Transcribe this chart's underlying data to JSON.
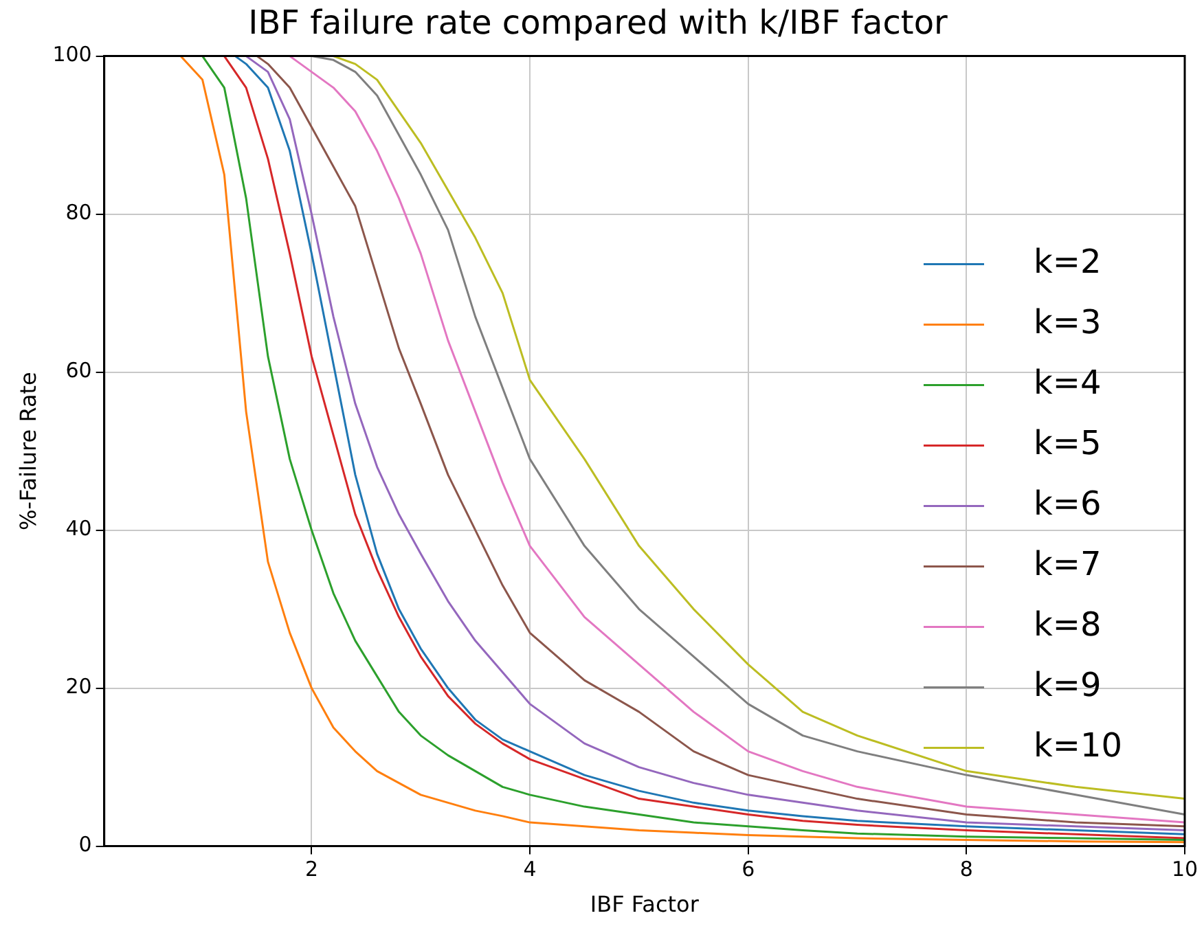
{
  "chart_data": {
    "type": "line",
    "title": "IBF failure rate compared with k/IBF factor",
    "xlabel": "IBF Factor",
    "ylabel": "%-Failure Rate",
    "series": [
      {
        "name": "k=2",
        "color": "#1f77b4",
        "x": [
          1.3,
          1.4,
          1.6,
          1.8,
          2.0,
          2.2,
          2.4,
          2.6,
          2.8,
          3.0,
          3.25,
          3.5,
          3.75,
          4.0,
          4.5,
          5.0,
          5.5,
          6.0,
          6.5,
          7.0,
          8.0,
          9.0,
          10.0
        ],
        "values": [
          100,
          99,
          96,
          88,
          75,
          61,
          47,
          37,
          30,
          25,
          20,
          16,
          13.5,
          12,
          9,
          7,
          5.5,
          4.5,
          3.8,
          3.2,
          2.5,
          2,
          1.5
        ]
      },
      {
        "name": "k=3",
        "color": "#ff7f0e",
        "x": [
          0.8,
          1.0,
          1.2,
          1.4,
          1.6,
          1.8,
          2.0,
          2.2,
          2.4,
          2.6,
          2.8,
          3.0,
          3.25,
          3.5,
          3.75,
          4.0,
          4.5,
          5.0,
          5.5,
          6.0,
          6.5,
          7.0,
          8.0,
          9.0,
          10.0
        ],
        "values": [
          100,
          97,
          85,
          55,
          36,
          27,
          20,
          15,
          12,
          9.5,
          8,
          6.5,
          5.5,
          4.5,
          3.8,
          3,
          2.5,
          2,
          1.7,
          1.4,
          1.2,
          1,
          0.8,
          0.6,
          0.5
        ]
      },
      {
        "name": "k=4",
        "color": "#2ca02c",
        "x": [
          1.0,
          1.2,
          1.4,
          1.6,
          1.8,
          2.0,
          2.2,
          2.4,
          2.6,
          2.8,
          3.0,
          3.25,
          3.5,
          3.75,
          4.0,
          4.5,
          5.0,
          5.5,
          6.0,
          6.5,
          7.0,
          8.0,
          9.0,
          10.0
        ],
        "values": [
          100,
          96,
          82,
          62,
          49,
          40,
          32,
          26,
          21.5,
          17,
          14,
          11.5,
          9.5,
          7.5,
          6.5,
          5,
          4,
          3,
          2.5,
          2,
          1.6,
          1.2,
          1,
          0.8
        ]
      },
      {
        "name": "k=5",
        "color": "#d62728",
        "x": [
          1.2,
          1.4,
          1.6,
          1.8,
          2.0,
          2.2,
          2.4,
          2.6,
          2.8,
          3.0,
          3.25,
          3.5,
          3.75,
          4.0,
          4.5,
          5.0,
          5.5,
          6.0,
          6.5,
          7.0,
          8.0,
          9.0,
          10.0
        ],
        "values": [
          100,
          96,
          87,
          75,
          62,
          52,
          42,
          35,
          29,
          24,
          19,
          15.5,
          13,
          11,
          8.5,
          6,
          5,
          4,
          3.2,
          2.7,
          2,
          1.5,
          1
        ]
      },
      {
        "name": "k=6",
        "color": "#9467bd",
        "x": [
          1.4,
          1.6,
          1.8,
          2.0,
          2.2,
          2.4,
          2.6,
          2.8,
          3.0,
          3.25,
          3.5,
          3.75,
          4.0,
          4.5,
          5.0,
          5.5,
          6.0,
          6.5,
          7.0,
          8.0,
          9.0,
          10.0
        ],
        "values": [
          100,
          98,
          92,
          80,
          67,
          56,
          48,
          42,
          37,
          31,
          26,
          22,
          18,
          13,
          10,
          8,
          6.5,
          5.5,
          4.5,
          3,
          2.5,
          2
        ]
      },
      {
        "name": "k=7",
        "color": "#8c564b",
        "x": [
          1.5,
          1.6,
          1.8,
          2.0,
          2.2,
          2.4,
          2.6,
          2.8,
          3.0,
          3.25,
          3.5,
          3.75,
          4.0,
          4.5,
          5.0,
          5.5,
          6.0,
          6.5,
          7.0,
          8.0,
          9.0,
          10.0
        ],
        "values": [
          100,
          99,
          96,
          91,
          86,
          81,
          72,
          63,
          56,
          47,
          40,
          33,
          27,
          21,
          17,
          12,
          9,
          7.5,
          6,
          4,
          3,
          2.5
        ]
      },
      {
        "name": "k=8",
        "color": "#e377c2",
        "x": [
          1.8,
          2.0,
          2.2,
          2.4,
          2.6,
          2.8,
          3.0,
          3.25,
          3.5,
          3.75,
          4.0,
          4.5,
          5.0,
          5.5,
          6.0,
          6.5,
          7.0,
          8.0,
          9.0,
          10.0
        ],
        "values": [
          100,
          98,
          96,
          93,
          88,
          82,
          75,
          64,
          55,
          46,
          38,
          29,
          23,
          17,
          12,
          9.5,
          7.5,
          5,
          4,
          3
        ]
      },
      {
        "name": "k=9",
        "color": "#7f7f7f",
        "x": [
          2.0,
          2.2,
          2.4,
          2.6,
          2.8,
          3.0,
          3.25,
          3.5,
          3.75,
          4.0,
          4.5,
          5.0,
          5.5,
          6.0,
          6.5,
          7.0,
          8.0,
          9.0,
          10.0
        ],
        "values": [
          100,
          99.5,
          98,
          95,
          90,
          85,
          78,
          67,
          58,
          49,
          38,
          30,
          24,
          18,
          14,
          12,
          9,
          6.5,
          4
        ]
      },
      {
        "name": "k=10",
        "color": "#bcbd22",
        "x": [
          2.2,
          2.4,
          2.6,
          2.8,
          3.0,
          3.25,
          3.5,
          3.75,
          4.0,
          4.5,
          5.0,
          5.5,
          6.0,
          6.5,
          7.0,
          8.0,
          9.0,
          10.0
        ],
        "values": [
          100,
          99,
          97,
          93,
          89,
          83,
          77,
          70,
          59,
          49,
          38,
          30,
          23,
          17,
          14,
          9.5,
          7.5,
          6
        ]
      }
    ],
    "xlim": [
      0.1,
      10
    ],
    "xticks": [
      2,
      4,
      6,
      8,
      10
    ],
    "ylim": [
      0,
      100
    ],
    "yticks": [
      0,
      20,
      40,
      60,
      80,
      100
    ],
    "grid": true,
    "legend": "right"
  }
}
